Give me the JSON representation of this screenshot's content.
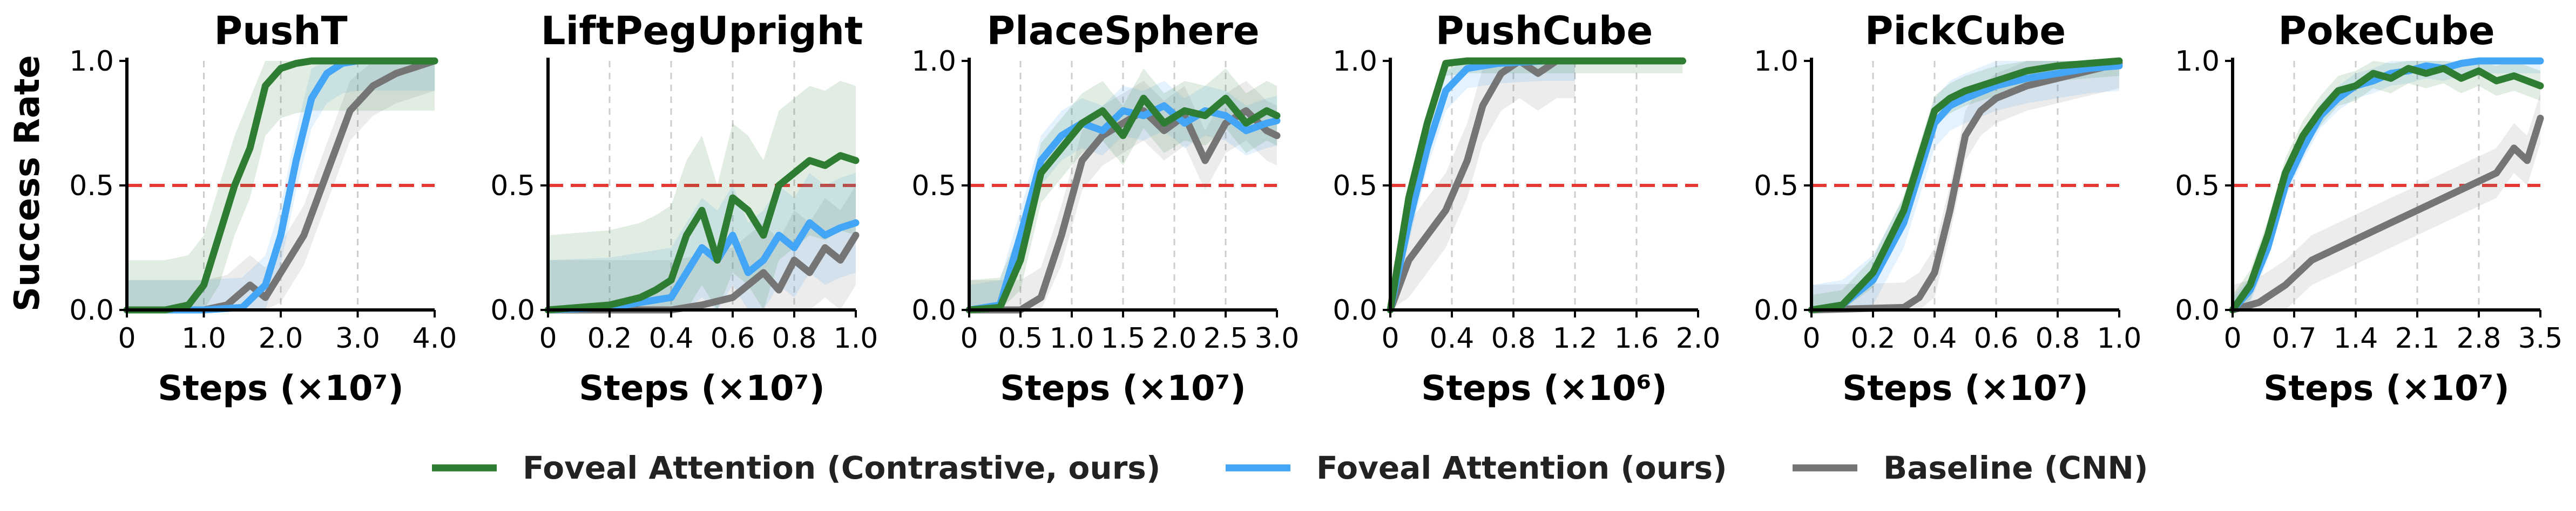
{
  "figure": {
    "ylabel": "Success Rate",
    "threshold": 0.5,
    "colors": {
      "green": "#2e7d32",
      "blue": "#42a5f5",
      "gray": "#757575",
      "threshold": "#e53935"
    },
    "legend": [
      {
        "key": "green",
        "label": "Foveal Attention (Contrastive, ours)"
      },
      {
        "key": "blue",
        "label": "Foveal Attention (ours)"
      },
      {
        "key": "gray",
        "label": "Baseline (CNN)"
      }
    ]
  },
  "chart_data": [
    {
      "type": "line",
      "title": "PushT",
      "xlabel": "Steps (×10⁷)",
      "ylabel": "Success Rate",
      "xlim": [
        0,
        4.0
      ],
      "ylim": [
        0,
        1.0
      ],
      "xticks": [
        0,
        1.0,
        2.0,
        3.0,
        4.0
      ],
      "xtick_labels": [
        "0",
        "1.0",
        "2.0",
        "3.0",
        "4.0"
      ],
      "yticks": [
        0,
        0.5,
        1.0
      ],
      "ytick_labels": [
        "0.0",
        "0.5",
        "1.0"
      ],
      "series": [
        {
          "name": "Foveal Attention (Contrastive, ours)",
          "color_key": "green",
          "x": [
            0,
            0.5,
            0.8,
            1.0,
            1.2,
            1.4,
            1.6,
            1.8,
            2.0,
            2.2,
            2.4,
            2.6,
            3.0,
            3.5,
            4.0
          ],
          "y": [
            0,
            0,
            0.02,
            0.1,
            0.3,
            0.5,
            0.65,
            0.9,
            0.97,
            0.99,
            1.0,
            1.0,
            1.0,
            1.0,
            1.0
          ],
          "band": 0.2
        },
        {
          "name": "Foveal Attention (ours)",
          "color_key": "blue",
          "x": [
            0,
            1.0,
            1.5,
            1.8,
            2.0,
            2.2,
            2.4,
            2.6,
            2.8,
            3.0,
            3.5,
            4.0
          ],
          "y": [
            0,
            0,
            0.01,
            0.1,
            0.3,
            0.6,
            0.85,
            0.95,
            0.99,
            1.0,
            1.0,
            1.0
          ],
          "band": 0.12
        },
        {
          "name": "Baseline (CNN)",
          "color_key": "gray",
          "x": [
            0,
            1.0,
            1.3,
            1.6,
            1.8,
            2.0,
            2.3,
            2.6,
            2.9,
            3.2,
            3.5,
            3.8,
            4.0
          ],
          "y": [
            0,
            0,
            0.02,
            0.1,
            0.05,
            0.15,
            0.3,
            0.55,
            0.8,
            0.9,
            0.95,
            0.98,
            1.0
          ],
          "band": 0.12
        }
      ]
    },
    {
      "type": "line",
      "title": "LiftPegUpright",
      "xlabel": "Steps (×10⁷)",
      "ylabel": "",
      "xlim": [
        0,
        1.0
      ],
      "ylim": [
        0,
        1.0
      ],
      "xticks": [
        0,
        0.2,
        0.4,
        0.6,
        0.8,
        1.0
      ],
      "xtick_labels": [
        "0",
        "0.2",
        "0.4",
        "0.6",
        "0.8",
        "1.0"
      ],
      "yticks": [
        0,
        0.5
      ],
      "ytick_labels": [
        "0.0",
        "0.5"
      ],
      "series": [
        {
          "name": "Foveal Attention (Contrastive, ours)",
          "color_key": "green",
          "x": [
            0,
            0.1,
            0.2,
            0.3,
            0.35,
            0.4,
            0.45,
            0.5,
            0.55,
            0.6,
            0.65,
            0.7,
            0.75,
            0.8,
            0.85,
            0.9,
            0.95,
            1.0
          ],
          "y": [
            0,
            0.01,
            0.02,
            0.05,
            0.08,
            0.12,
            0.3,
            0.4,
            0.2,
            0.45,
            0.4,
            0.3,
            0.5,
            0.55,
            0.6,
            0.58,
            0.62,
            0.6
          ],
          "band": 0.3
        },
        {
          "name": "Foveal Attention (ours)",
          "color_key": "blue",
          "x": [
            0,
            0.2,
            0.3,
            0.4,
            0.45,
            0.5,
            0.55,
            0.6,
            0.65,
            0.7,
            0.75,
            0.8,
            0.85,
            0.9,
            0.95,
            1.0
          ],
          "y": [
            0,
            0.01,
            0.03,
            0.05,
            0.15,
            0.25,
            0.2,
            0.3,
            0.15,
            0.2,
            0.3,
            0.25,
            0.35,
            0.3,
            0.33,
            0.35
          ],
          "band": 0.2
        },
        {
          "name": "Baseline (CNN)",
          "color_key": "gray",
          "x": [
            0,
            0.4,
            0.5,
            0.6,
            0.65,
            0.7,
            0.75,
            0.8,
            0.85,
            0.9,
            0.95,
            1.0
          ],
          "y": [
            0,
            0,
            0.02,
            0.05,
            0.1,
            0.15,
            0.08,
            0.2,
            0.15,
            0.25,
            0.2,
            0.3
          ],
          "band": 0.2
        }
      ]
    },
    {
      "type": "line",
      "title": "PlaceSphere",
      "xlabel": "Steps (×10⁷)",
      "ylabel": "",
      "xlim": [
        0,
        3.0
      ],
      "ylim": [
        0,
        1.0
      ],
      "xticks": [
        0,
        0.5,
        1.0,
        1.5,
        2.0,
        2.5,
        3.0
      ],
      "xtick_labels": [
        "0",
        "0.5",
        "1.0",
        "1.5",
        "2.0",
        "2.5",
        "3.0"
      ],
      "yticks": [
        0,
        0.5,
        1.0
      ],
      "ytick_labels": [
        "0.0",
        "0.5",
        "1.0"
      ],
      "series": [
        {
          "name": "Foveal Attention (Contrastive, ours)",
          "color_key": "green",
          "x": [
            0,
            0.3,
            0.5,
            0.7,
            0.9,
            1.1,
            1.3,
            1.5,
            1.7,
            1.9,
            2.1,
            2.3,
            2.5,
            2.7,
            2.9,
            3.0
          ],
          "y": [
            0,
            0.01,
            0.2,
            0.55,
            0.65,
            0.75,
            0.8,
            0.7,
            0.85,
            0.75,
            0.8,
            0.78,
            0.85,
            0.75,
            0.8,
            0.78
          ],
          "band": 0.12
        },
        {
          "name": "Foveal Attention (ours)",
          "color_key": "blue",
          "x": [
            0,
            0.3,
            0.5,
            0.7,
            0.9,
            1.1,
            1.3,
            1.5,
            1.7,
            1.9,
            2.1,
            2.3,
            2.5,
            2.7,
            2.9,
            3.0
          ],
          "y": [
            0,
            0.02,
            0.3,
            0.6,
            0.7,
            0.75,
            0.72,
            0.8,
            0.78,
            0.82,
            0.75,
            0.8,
            0.78,
            0.72,
            0.75,
            0.76
          ],
          "band": 0.1
        },
        {
          "name": "Baseline (CNN)",
          "color_key": "gray",
          "x": [
            0,
            0.5,
            0.7,
            0.9,
            1.1,
            1.3,
            1.5,
            1.7,
            1.9,
            2.1,
            2.3,
            2.5,
            2.7,
            2.9,
            3.0
          ],
          "y": [
            0,
            0,
            0.05,
            0.3,
            0.6,
            0.7,
            0.75,
            0.8,
            0.72,
            0.78,
            0.6,
            0.75,
            0.8,
            0.72,
            0.7
          ],
          "band": 0.12
        }
      ]
    },
    {
      "type": "line",
      "title": "PushCube",
      "xlabel": "Steps (×10⁶)",
      "ylabel": "",
      "xlim": [
        0,
        2.0
      ],
      "ylim": [
        0,
        1.0
      ],
      "xticks": [
        0,
        0.4,
        0.8,
        1.2,
        1.6,
        2.0
      ],
      "xtick_labels": [
        "0",
        "0.4",
        "0.8",
        "1.2",
        "1.6",
        "2.0"
      ],
      "yticks": [
        0,
        0.5,
        1.0
      ],
      "ytick_labels": [
        "0.0",
        "0.5",
        "1.0"
      ],
      "series": [
        {
          "name": "Foveal Attention (Contrastive, ours)",
          "color_key": "green",
          "x": [
            0,
            0.12,
            0.24,
            0.36,
            0.5,
            0.7,
            1.0,
            1.3,
            1.6,
            1.9
          ],
          "y": [
            0,
            0.45,
            0.75,
            0.99,
            1.0,
            1.0,
            1.0,
            1.0,
            1.0,
            1.0
          ],
          "band": 0.05
        },
        {
          "name": "Foveal Attention (ours)",
          "color_key": "blue",
          "x": [
            0,
            0.12,
            0.24,
            0.36,
            0.5,
            0.7,
            1.0,
            1.2
          ],
          "y": [
            0,
            0.35,
            0.65,
            0.88,
            0.97,
            0.99,
            1.0,
            1.0
          ],
          "band": 0.08
        },
        {
          "name": "Baseline (CNN)",
          "color_key": "gray",
          "x": [
            0,
            0.12,
            0.24,
            0.36,
            0.5,
            0.6,
            0.72,
            0.84,
            0.96,
            1.08,
            1.2
          ],
          "y": [
            0,
            0.2,
            0.3,
            0.4,
            0.6,
            0.82,
            0.95,
            1.0,
            0.95,
            1.0,
            1.0
          ],
          "band": 0.15
        }
      ]
    },
    {
      "type": "line",
      "title": "PickCube",
      "xlabel": "Steps (×10⁷)",
      "ylabel": "",
      "xlim": [
        0,
        1.0
      ],
      "ylim": [
        0,
        1.0
      ],
      "xticks": [
        0,
        0.2,
        0.4,
        0.6,
        0.8,
        1.0
      ],
      "xtick_labels": [
        "0",
        "0.2",
        "0.4",
        "0.6",
        "0.8",
        "1.0"
      ],
      "yticks": [
        0,
        0.5,
        1.0
      ],
      "ytick_labels": [
        "0.0",
        "0.5",
        "1.0"
      ],
      "series": [
        {
          "name": "Foveal Attention (Contrastive, ours)",
          "color_key": "green",
          "x": [
            0,
            0.1,
            0.2,
            0.3,
            0.35,
            0.4,
            0.45,
            0.5,
            0.6,
            0.7,
            0.8,
            0.9,
            1.0
          ],
          "y": [
            0,
            0.02,
            0.15,
            0.4,
            0.6,
            0.8,
            0.85,
            0.88,
            0.92,
            0.96,
            0.98,
            0.99,
            1.0
          ],
          "band": 0.06
        },
        {
          "name": "Foveal Attention (ours)",
          "color_key": "blue",
          "x": [
            0,
            0.1,
            0.2,
            0.3,
            0.35,
            0.4,
            0.45,
            0.5,
            0.6,
            0.7,
            0.8,
            0.9,
            1.0
          ],
          "y": [
            0,
            0.02,
            0.12,
            0.35,
            0.55,
            0.75,
            0.82,
            0.85,
            0.9,
            0.93,
            0.95,
            0.97,
            0.98
          ],
          "band": 0.1
        },
        {
          "name": "Baseline (CNN)",
          "color_key": "gray",
          "x": [
            0,
            0.3,
            0.35,
            0.4,
            0.45,
            0.5,
            0.55,
            0.6,
            0.7,
            0.8,
            0.9,
            1.0
          ],
          "y": [
            0,
            0.01,
            0.05,
            0.15,
            0.4,
            0.7,
            0.8,
            0.85,
            0.9,
            0.93,
            0.96,
            0.99
          ],
          "band": 0.1
        }
      ]
    },
    {
      "type": "line",
      "title": "PokeCube",
      "xlabel": "Steps (×10⁷)",
      "ylabel": "",
      "xlim": [
        0,
        3.5
      ],
      "ylim": [
        0,
        1.0
      ],
      "xticks": [
        0,
        0.7,
        1.4,
        2.1,
        2.8,
        3.5
      ],
      "xtick_labels": [
        "0",
        "0.7",
        "1.4",
        "2.1",
        "2.8",
        "3.5"
      ],
      "yticks": [
        0,
        0.5,
        1.0
      ],
      "ytick_labels": [
        "0.0",
        "0.5",
        "1.0"
      ],
      "series": [
        {
          "name": "Foveal Attention (Contrastive, ours)",
          "color_key": "green",
          "x": [
            0,
            0.2,
            0.4,
            0.6,
            0.8,
            1.0,
            1.2,
            1.4,
            1.6,
            1.8,
            2.0,
            2.2,
            2.4,
            2.6,
            2.8,
            3.0,
            3.2,
            3.5
          ],
          "y": [
            0,
            0.1,
            0.3,
            0.55,
            0.7,
            0.8,
            0.88,
            0.9,
            0.95,
            0.93,
            0.97,
            0.95,
            0.97,
            0.93,
            0.96,
            0.92,
            0.94,
            0.9
          ],
          "band": 0.06
        },
        {
          "name": "Foveal Attention (ours)",
          "color_key": "blue",
          "x": [
            0,
            0.2,
            0.4,
            0.6,
            0.8,
            1.0,
            1.2,
            1.4,
            1.6,
            1.8,
            2.0,
            2.2,
            2.4,
            2.6,
            2.8,
            3.0,
            3.2,
            3.5
          ],
          "y": [
            0,
            0.08,
            0.25,
            0.5,
            0.65,
            0.78,
            0.85,
            0.9,
            0.92,
            0.95,
            0.96,
            0.98,
            0.97,
            0.99,
            1.0,
            1.0,
            1.0,
            1.0
          ],
          "band": 0.05
        },
        {
          "name": "Baseline (CNN)",
          "color_key": "gray",
          "x": [
            0,
            0.3,
            0.6,
            0.9,
            1.2,
            1.5,
            1.8,
            2.1,
            2.4,
            2.7,
            3.0,
            3.2,
            3.35,
            3.5
          ],
          "y": [
            0,
            0.03,
            0.1,
            0.2,
            0.25,
            0.3,
            0.35,
            0.4,
            0.45,
            0.5,
            0.55,
            0.65,
            0.6,
            0.77
          ],
          "band": 0.1
        }
      ]
    }
  ]
}
